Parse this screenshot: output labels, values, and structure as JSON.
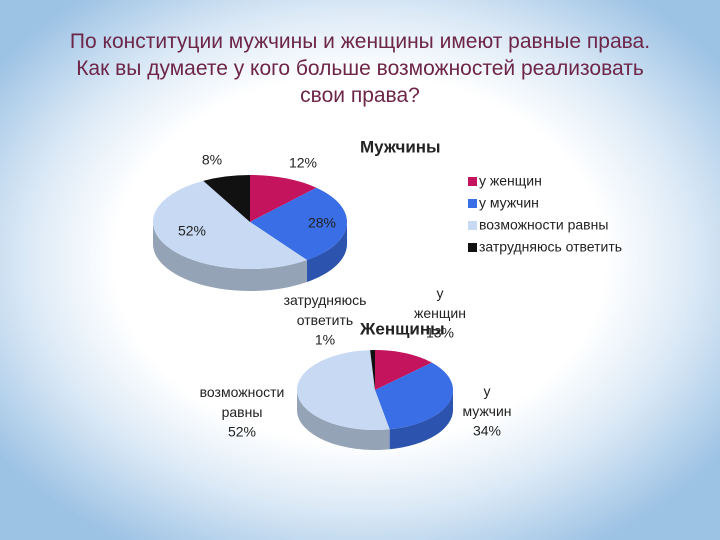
{
  "slide": {
    "title": "По конституции мужчины и женщины имеют равные права. Как вы думаете у кого больше возможностей реализовать свои права?"
  },
  "chart_data": [
    {
      "type": "pie",
      "title": "Мужчины",
      "categories": [
        "у женщин",
        "у мужчин",
        "возможности равны",
        "затрудняюсь ответить"
      ],
      "values": [
        12,
        28,
        52,
        8
      ],
      "value_labels": [
        "12%",
        "28%",
        "52%",
        "8%"
      ],
      "colors": [
        "#c4145e",
        "#3a6ee6",
        "#c7d9f3",
        "#111111"
      ],
      "legend": "right"
    },
    {
      "type": "pie",
      "title": "Женщины",
      "categories": [
        "у женщин",
        "у мужчин",
        "возможности равны",
        "затрудняюсь ответить"
      ],
      "values": [
        13,
        34,
        52,
        1
      ],
      "value_labels": [
        "13%",
        "34%",
        "52%",
        "1%"
      ],
      "colors": [
        "#c4145e",
        "#3a6ee6",
        "#c7d9f3",
        "#111111"
      ]
    }
  ]
}
